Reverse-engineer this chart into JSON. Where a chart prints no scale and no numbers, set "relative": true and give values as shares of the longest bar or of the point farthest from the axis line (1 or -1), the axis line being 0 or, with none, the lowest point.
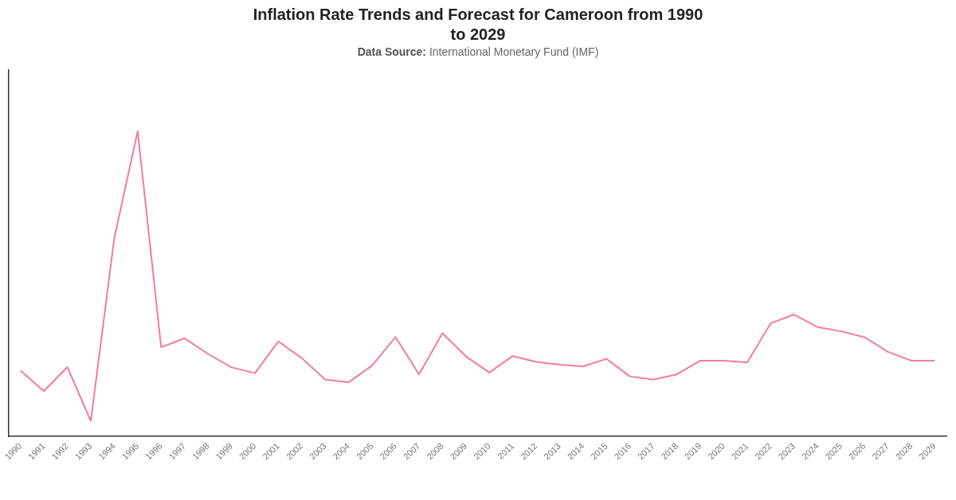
{
  "chart_data": {
    "type": "line",
    "title": "Inflation Rate Trends and Forecast for Cameroon from 1990 to 2029",
    "subtitle": "Data Source: International Monetary Fund (IMF)",
    "categories": [
      "1990",
      "1991",
      "1992",
      "1993",
      "1994",
      "1995",
      "1996",
      "1997",
      "1998",
      "1999",
      "2000",
      "2001",
      "2002",
      "2003",
      "2004",
      "2005",
      "2006",
      "2007",
      "2008",
      "2009",
      "2010",
      "2011",
      "2012",
      "2013",
      "2014",
      "2015",
      "2016",
      "2017",
      "2018",
      "2019",
      "2020",
      "2021",
      "2022",
      "2023",
      "2024",
      "2025",
      "2026",
      "2027",
      "2028",
      "2029"
    ],
    "values": [
      0.215,
      0.148,
      0.227,
      0.05,
      0.649,
      1,
      0.292,
      0.321,
      0.27,
      0.226,
      0.207,
      0.311,
      0.256,
      0.186,
      0.177,
      0.232,
      0.325,
      0.203,
      0.338,
      0.262,
      0.209,
      0.263,
      0.244,
      0.235,
      0.229,
      0.254,
      0.196,
      0.186,
      0.203,
      0.248,
      0.248,
      0.242,
      0.37,
      0.399,
      0.358,
      0.344,
      0.325,
      0.277,
      0.248,
      0.248
    ],
    "color": "#f27aa6",
    "relative": true
  }
}
